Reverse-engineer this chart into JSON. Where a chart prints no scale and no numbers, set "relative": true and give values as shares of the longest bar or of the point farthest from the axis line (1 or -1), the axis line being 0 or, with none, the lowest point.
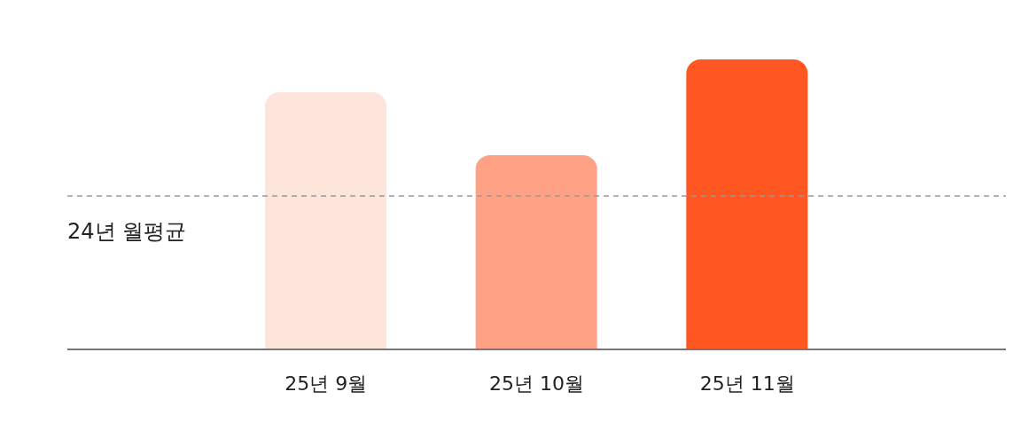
{
  "chart_data": {
    "type": "bar",
    "relative": true,
    "categories": [
      "25년 9월",
      "25년 10월",
      "25년 11월"
    ],
    "values": [
      0.887,
      0.67,
      1
    ],
    "colors": [
      "#fde5dc",
      "#ffa184",
      "#ff5622"
    ],
    "ref_lines": [
      {
        "axis": "y",
        "value": 0.529,
        "label": "24년 월평균",
        "color": "#999999",
        "line_style": "dashed"
      }
    ],
    "grid": false,
    "legend": false
  }
}
